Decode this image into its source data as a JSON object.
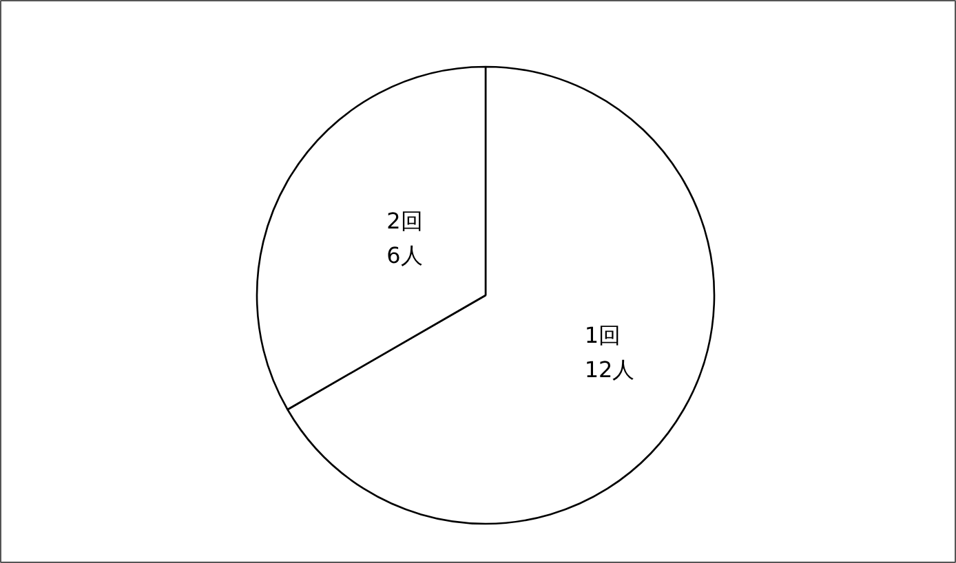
{
  "chart_data": {
    "type": "pie",
    "categories": [
      "1回",
      "2回"
    ],
    "values": [
      12,
      6
    ],
    "value_labels": [
      "12人",
      "6人"
    ],
    "colors": [
      "#ffffff",
      "#ffffff"
    ]
  }
}
